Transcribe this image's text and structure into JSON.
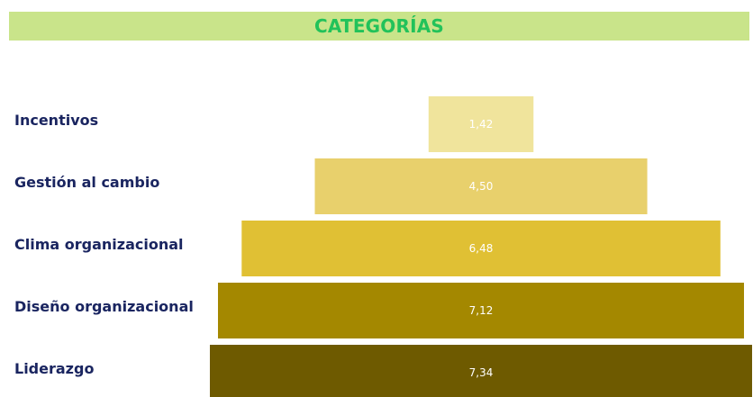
{
  "header": {
    "title": "CATEGORÍAS"
  },
  "colors": {
    "title_bar": "#c9e48a",
    "title_text": "#22c25a",
    "category_text": "#1a2560",
    "value_text": "#ffffff"
  },
  "chart_data": {
    "type": "bar",
    "orientation": "horizontal",
    "layout": "funnel-centered",
    "title": "CATEGORÍAS",
    "categories": [
      "Incentivos",
      "Gestión al cambio",
      "Clima organizacional",
      "Diseño organizacional",
      "Liderazgo"
    ],
    "values": [
      1.42,
      4.5,
      6.48,
      7.12,
      7.34
    ],
    "value_labels": [
      "1,42",
      "4,50",
      "6,48",
      "7,12",
      "7,34"
    ],
    "bar_colors": [
      "#f0e49c",
      "#e8d06c",
      "#e0c034",
      "#a48800",
      "#6e5a00"
    ],
    "grid": false,
    "legend": "none"
  }
}
